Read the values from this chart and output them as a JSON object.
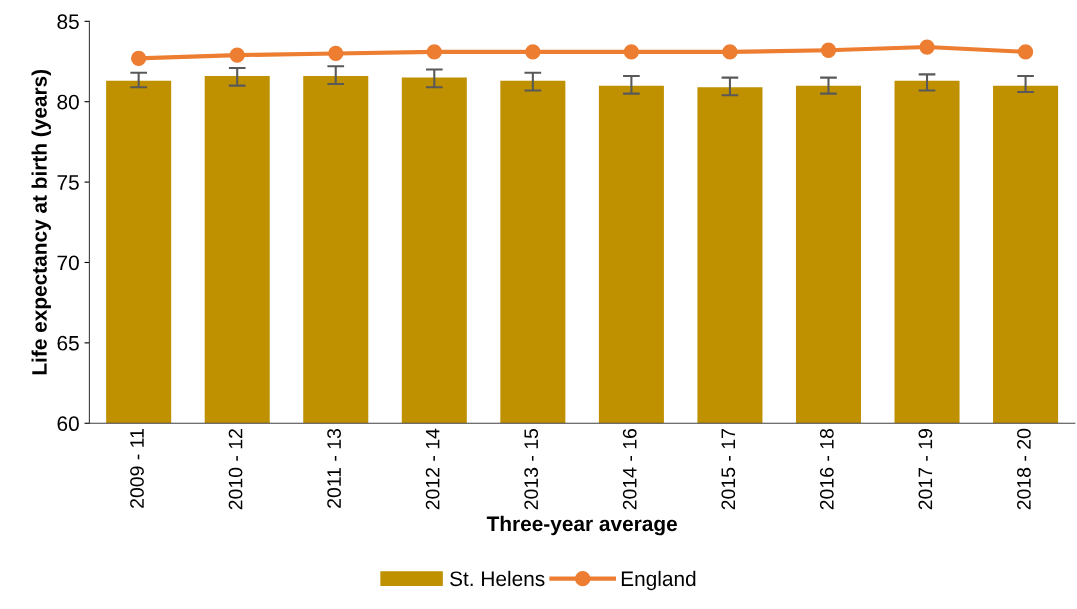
{
  "chart_data": {
    "type": "bar",
    "xlabel": "Three-year average",
    "ylabel": "Life expectancy at birth (years)",
    "categories": [
      "2009 - 11",
      "2010 - 12",
      "2011 - 13",
      "2012 - 14",
      "2013 - 15",
      "2014 - 16",
      "2015 - 17",
      "2016 - 18",
      "2017 - 19",
      "2018 - 20"
    ],
    "series": [
      {
        "name": "St. Helens",
        "color": "#bf9000",
        "values": [
          81.3,
          81.6,
          81.6,
          81.5,
          81.3,
          81.0,
          80.9,
          81.0,
          81.3,
          81.0
        ],
        "errors": [
          [
            80.9,
            81.8
          ],
          [
            81.0,
            82.1
          ],
          [
            81.1,
            82.2
          ],
          [
            80.9,
            82.0
          ],
          [
            80.7,
            81.8
          ],
          [
            80.5,
            81.6
          ],
          [
            80.4,
            81.5
          ],
          [
            80.5,
            81.5
          ],
          [
            80.7,
            81.7
          ],
          [
            80.6,
            81.6
          ]
        ]
      },
      {
        "name": "England",
        "type": "line",
        "color": "#ed7d31",
        "marker": "circle",
        "values": [
          82.7,
          82.9,
          83.0,
          83.1,
          83.1,
          83.1,
          83.1,
          83.2,
          83.4,
          83.1
        ]
      }
    ],
    "ylim": [
      60,
      85
    ],
    "yticks": [
      60,
      65,
      70,
      75,
      80,
      85
    ],
    "grid": false,
    "legend": "bottom"
  }
}
